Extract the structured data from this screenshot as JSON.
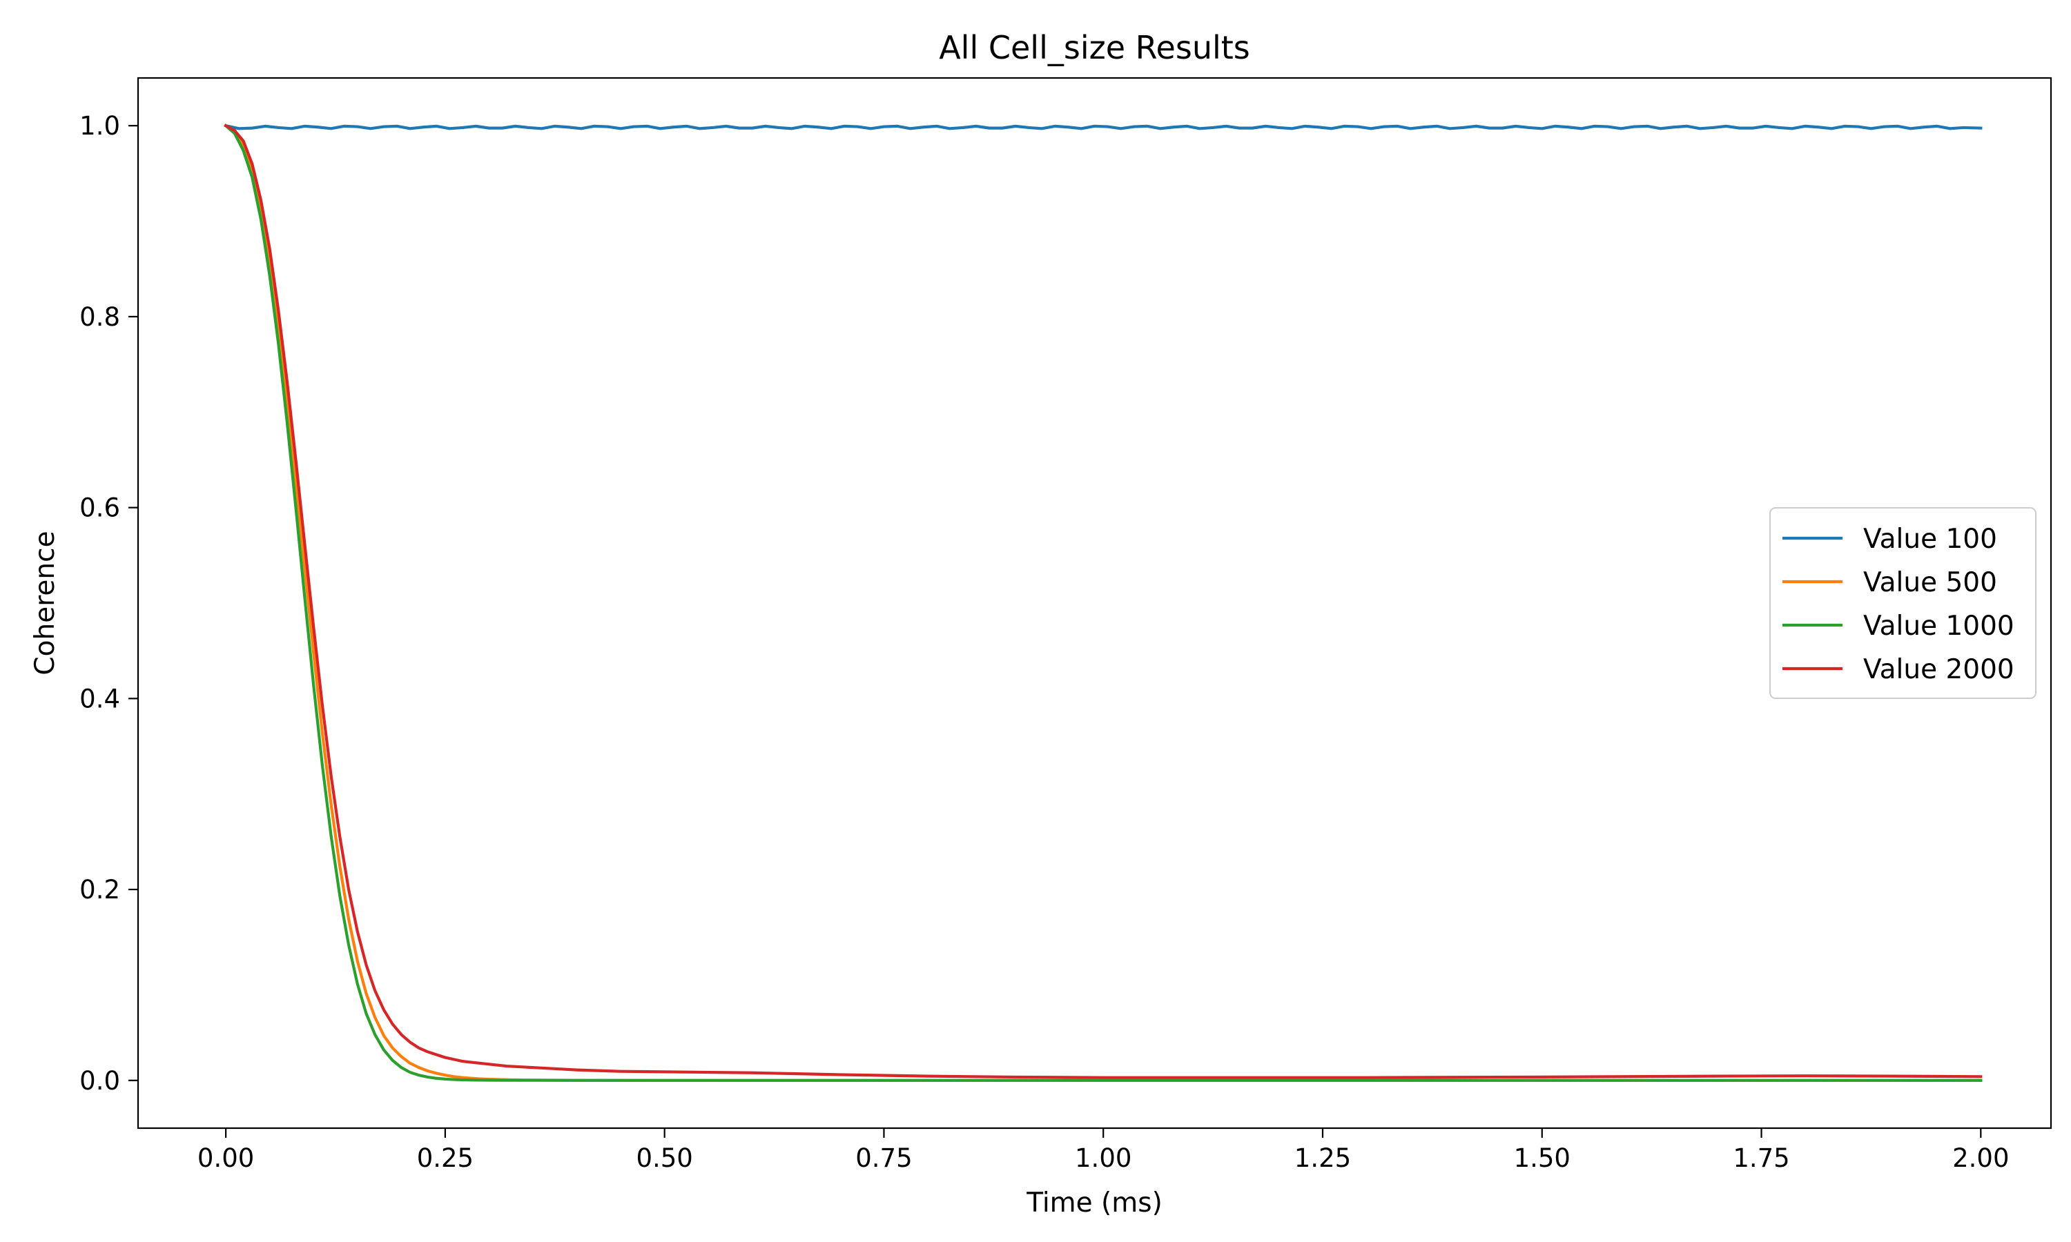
{
  "chart_data": {
    "type": "line",
    "title": "All Cell_size Results",
    "xlabel": "Time (ms)",
    "ylabel": "Coherence",
    "xlim": [
      -0.1,
      2.08
    ],
    "ylim": [
      -0.05,
      1.05
    ],
    "xticks": [
      0.0,
      0.25,
      0.5,
      0.75,
      1.0,
      1.25,
      1.5,
      1.75,
      2.0
    ],
    "xtick_labels": [
      "0.00",
      "0.25",
      "0.50",
      "0.75",
      "1.00",
      "1.25",
      "1.50",
      "1.75",
      "2.00"
    ],
    "yticks": [
      0.0,
      0.2,
      0.4,
      0.6,
      0.8,
      1.0
    ],
    "ytick_labels": [
      "0.0",
      "0.2",
      "0.4",
      "0.6",
      "0.8",
      "1.0"
    ],
    "grid": false,
    "legend_position": "center-right",
    "series": [
      {
        "name": "Value 100",
        "color": "#1f77b4",
        "x": [
          0.0,
          0.015,
          0.03,
          0.045,
          0.06,
          0.075,
          0.09,
          0.105,
          0.12,
          0.135,
          0.15,
          0.165,
          0.18,
          0.195,
          0.21,
          0.225,
          0.24,
          0.255,
          0.27,
          0.285,
          0.3,
          0.315,
          0.33,
          0.345,
          0.36,
          0.375,
          0.39,
          0.405,
          0.42,
          0.435,
          0.45,
          0.465,
          0.48,
          0.495,
          0.51,
          0.525,
          0.54,
          0.555,
          0.57,
          0.585,
          0.6,
          0.615,
          0.63,
          0.645,
          0.66,
          0.675,
          0.69,
          0.705,
          0.72,
          0.735,
          0.75,
          0.765,
          0.78,
          0.795,
          0.81,
          0.825,
          0.84,
          0.855,
          0.87,
          0.885,
          0.9,
          0.915,
          0.93,
          0.945,
          0.96,
          0.975,
          0.99,
          1.005,
          1.02,
          1.035,
          1.05,
          1.065,
          1.08,
          1.095,
          1.11,
          1.125,
          1.14,
          1.155,
          1.17,
          1.185,
          1.2,
          1.215,
          1.23,
          1.245,
          1.26,
          1.275,
          1.29,
          1.305,
          1.32,
          1.335,
          1.35,
          1.365,
          1.38,
          1.395,
          1.41,
          1.425,
          1.44,
          1.455,
          1.47,
          1.485,
          1.5,
          1.515,
          1.53,
          1.545,
          1.56,
          1.575,
          1.59,
          1.605,
          1.62,
          1.635,
          1.65,
          1.665,
          1.68,
          1.695,
          1.71,
          1.725,
          1.74,
          1.755,
          1.77,
          1.785,
          1.8,
          1.815,
          1.83,
          1.845,
          1.86,
          1.875,
          1.89,
          1.905,
          1.92,
          1.935,
          1.95,
          1.965,
          1.98,
          2.0
        ],
        "y": [
          1.0,
          0.997,
          0.9975,
          0.9995,
          0.998,
          0.997,
          0.9995,
          0.9985,
          0.997,
          0.9995,
          0.999,
          0.997,
          0.999,
          0.9995,
          0.997,
          0.9985,
          0.9995,
          0.997,
          0.998,
          0.9995,
          0.9975,
          0.9975,
          0.9995,
          0.998,
          0.997,
          0.9995,
          0.9985,
          0.997,
          0.9995,
          0.999,
          0.997,
          0.999,
          0.9995,
          0.997,
          0.9985,
          0.9995,
          0.997,
          0.998,
          0.9995,
          0.9975,
          0.9975,
          0.9995,
          0.998,
          0.997,
          0.9995,
          0.9985,
          0.997,
          0.9995,
          0.999,
          0.997,
          0.999,
          0.9995,
          0.997,
          0.9985,
          0.9995,
          0.997,
          0.998,
          0.9995,
          0.9975,
          0.9975,
          0.9995,
          0.998,
          0.997,
          0.9995,
          0.9985,
          0.997,
          0.9995,
          0.999,
          0.997,
          0.999,
          0.9995,
          0.997,
          0.9985,
          0.9995,
          0.997,
          0.998,
          0.9995,
          0.9975,
          0.9975,
          0.9995,
          0.998,
          0.997,
          0.9995,
          0.9985,
          0.997,
          0.9995,
          0.999,
          0.997,
          0.999,
          0.9995,
          0.997,
          0.9985,
          0.9995,
          0.997,
          0.998,
          0.9995,
          0.9975,
          0.9975,
          0.9995,
          0.998,
          0.997,
          0.9995,
          0.9985,
          0.997,
          0.9995,
          0.999,
          0.997,
          0.999,
          0.9995,
          0.997,
          0.9985,
          0.9995,
          0.997,
          0.998,
          0.9995,
          0.9975,
          0.9975,
          0.9995,
          0.998,
          0.997,
          0.9995,
          0.9985,
          0.997,
          0.9995,
          0.999,
          0.997,
          0.999,
          0.9995,
          0.997,
          0.9985,
          0.9995,
          0.997,
          0.998,
          0.9975
        ]
      },
      {
        "name": "Value 500",
        "color": "#ff7f0e",
        "x": [
          0.0,
          0.01,
          0.02,
          0.03,
          0.04,
          0.05,
          0.06,
          0.07,
          0.08,
          0.09,
          0.1,
          0.11,
          0.12,
          0.13,
          0.14,
          0.15,
          0.16,
          0.17,
          0.18,
          0.19,
          0.2,
          0.21,
          0.22,
          0.23,
          0.24,
          0.25,
          0.26,
          0.27,
          0.28,
          0.29,
          0.3,
          0.32,
          0.34,
          0.36,
          0.4,
          0.5,
          0.75,
          1.0,
          1.25,
          1.5,
          1.75,
          2.0
        ],
        "y": [
          1.0,
          0.993,
          0.978,
          0.952,
          0.912,
          0.858,
          0.79,
          0.712,
          0.626,
          0.536,
          0.448,
          0.364,
          0.289,
          0.224,
          0.169,
          0.125,
          0.091,
          0.066,
          0.047,
          0.034,
          0.025,
          0.018,
          0.0135,
          0.01,
          0.0075,
          0.0055,
          0.004,
          0.003,
          0.0022,
          0.0016,
          0.0012,
          0.0007,
          0.0004,
          0.0003,
          0.0002,
          0.0001,
          0.0001,
          0.0001,
          0.0001,
          0.0001,
          0.0001,
          0.0001
        ]
      },
      {
        "name": "Value 1000",
        "color": "#2ca02c",
        "x": [
          0.0,
          0.01,
          0.02,
          0.03,
          0.04,
          0.05,
          0.06,
          0.07,
          0.08,
          0.09,
          0.1,
          0.11,
          0.12,
          0.13,
          0.14,
          0.15,
          0.16,
          0.17,
          0.18,
          0.19,
          0.2,
          0.21,
          0.22,
          0.23,
          0.24,
          0.25,
          0.26,
          0.27,
          0.28,
          0.3,
          0.32,
          0.35,
          0.4,
          0.5,
          0.75,
          1.0,
          1.25,
          1.5,
          1.75,
          2.0
        ],
        "y": [
          1.0,
          0.992,
          0.974,
          0.946,
          0.902,
          0.843,
          0.771,
          0.688,
          0.598,
          0.505,
          0.414,
          0.33,
          0.256,
          0.193,
          0.142,
          0.101,
          0.07,
          0.048,
          0.032,
          0.021,
          0.0135,
          0.0085,
          0.0055,
          0.0035,
          0.0022,
          0.0014,
          0.0009,
          0.0006,
          0.0004,
          0.0002,
          0.0001,
          0.0001,
          0.0,
          0.0,
          0.0,
          0.0,
          0.0,
          0.0,
          0.0,
          0.0
        ]
      },
      {
        "name": "Value 2000",
        "color": "#d62728",
        "x": [
          0.0,
          0.01,
          0.02,
          0.03,
          0.04,
          0.05,
          0.06,
          0.07,
          0.08,
          0.09,
          0.1,
          0.11,
          0.12,
          0.13,
          0.14,
          0.15,
          0.16,
          0.17,
          0.18,
          0.19,
          0.2,
          0.21,
          0.22,
          0.23,
          0.24,
          0.25,
          0.26,
          0.27,
          0.28,
          0.29,
          0.3,
          0.32,
          0.34,
          0.36,
          0.38,
          0.4,
          0.45,
          0.5,
          0.6,
          0.7,
          0.8,
          0.9,
          1.0,
          1.1,
          1.2,
          1.3,
          1.4,
          1.5,
          1.6,
          1.7,
          1.8,
          1.9,
          2.0
        ],
        "y": [
          1.0,
          0.995,
          0.984,
          0.96,
          0.922,
          0.871,
          0.806,
          0.731,
          0.648,
          0.561,
          0.475,
          0.393,
          0.319,
          0.255,
          0.2,
          0.156,
          0.121,
          0.094,
          0.074,
          0.059,
          0.048,
          0.04,
          0.034,
          0.03,
          0.027,
          0.024,
          0.022,
          0.02,
          0.019,
          0.018,
          0.017,
          0.015,
          0.014,
          0.013,
          0.012,
          0.011,
          0.0095,
          0.009,
          0.008,
          0.006,
          0.0045,
          0.0035,
          0.003,
          0.003,
          0.003,
          0.003,
          0.0033,
          0.0036,
          0.004,
          0.0045,
          0.0048,
          0.0045,
          0.004
        ]
      }
    ]
  }
}
